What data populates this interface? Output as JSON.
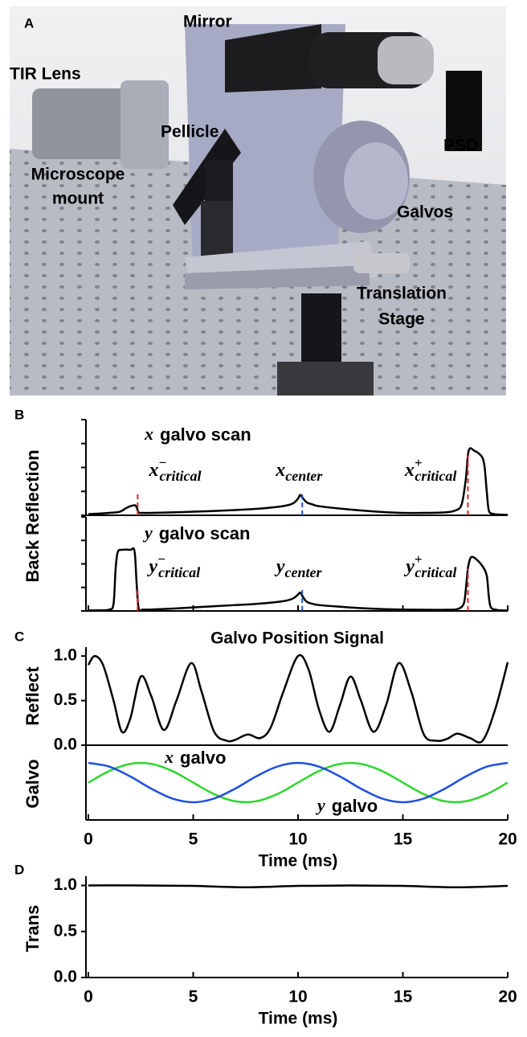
{
  "panel_a": {
    "letter": "A",
    "labels": {
      "mirror": "Mirror",
      "tir_lens": "TIR Lens",
      "pellicle": "Pellicle",
      "psd": "PSD",
      "microscope_mount": [
        "Microscope",
        "mount"
      ],
      "galvos": "Galvos",
      "translation_stage": [
        "Translation",
        "Stage"
      ]
    }
  },
  "chart_data": [
    {
      "type": "line",
      "panel": "B",
      "ylabel": "Back Reflection",
      "annotation": {
        "var": "x",
        "text": "galvo scan"
      },
      "xlim": [
        0,
        20
      ],
      "ylim": [
        0,
        4
      ],
      "yticks": [
        0,
        1,
        2,
        3,
        4
      ],
      "tick_labels": false,
      "x": [
        0,
        0.5,
        1.0,
        1.5,
        1.8,
        2.0,
        2.2,
        2.3,
        2.4,
        2.6,
        3,
        4,
        5,
        6,
        7,
        8,
        9,
        9.5,
        9.8,
        10.0,
        10.1,
        10.2,
        10.4,
        10.7,
        11,
        12,
        13,
        14,
        15,
        16,
        17,
        17.5,
        17.8,
        18.0,
        18.1,
        18.2,
        18.4,
        18.6,
        18.8,
        18.9,
        19.0,
        19.1,
        19.3,
        19.6,
        20
      ],
      "series": [
        {
          "color": "#000000",
          "values": [
            0.05,
            0.07,
            0.1,
            0.15,
            0.3,
            0.38,
            0.42,
            0.35,
            0.12,
            0.1,
            0.1,
            0.12,
            0.15,
            0.18,
            0.22,
            0.27,
            0.35,
            0.42,
            0.52,
            0.7,
            0.85,
            0.75,
            0.55,
            0.45,
            0.38,
            0.28,
            0.2,
            0.14,
            0.1,
            0.1,
            0.12,
            0.2,
            0.45,
            1.5,
            2.5,
            2.8,
            2.7,
            2.6,
            2.4,
            2.0,
            1.0,
            0.2,
            0.06,
            0.03,
            0.02
          ]
        }
      ],
      "markers": [
        {
          "x": 2.35,
          "color": "#e8202a",
          "label": {
            "base": "x",
            "sup": "−",
            "sub": "critical"
          }
        },
        {
          "x": 10.2,
          "color": "#1f4fe0",
          "label": {
            "base": "x",
            "sub": "center"
          }
        },
        {
          "x": 18.1,
          "color": "#e8202a",
          "label": {
            "base": "x",
            "sup": "+",
            "sub": "critical"
          }
        }
      ]
    },
    {
      "type": "line",
      "annotation": {
        "var": "y",
        "text": "galvo scan"
      },
      "xlim": [
        0,
        20
      ],
      "ylim": [
        0,
        4
      ],
      "yticks": [
        0,
        1,
        2,
        3,
        4
      ],
      "xticks": [
        0,
        5,
        10,
        15,
        20
      ],
      "tick_labels": false,
      "x": [
        0,
        0.5,
        1.0,
        1.2,
        1.3,
        1.4,
        1.6,
        2.0,
        2.2,
        2.3,
        2.4,
        2.6,
        3,
        4,
        5,
        6,
        7,
        8,
        9,
        9.5,
        9.8,
        10.0,
        10.1,
        10.2,
        10.4,
        10.7,
        11,
        12,
        13,
        14,
        15,
        16,
        17,
        17.6,
        17.9,
        18.0,
        18.1,
        18.2,
        18.3,
        18.5,
        18.8,
        19.0,
        19.1,
        19.2,
        19.5,
        20
      ],
      "series": [
        {
          "color": "#000000",
          "values": [
            0.02,
            0.03,
            0.06,
            0.3,
            1.8,
            2.5,
            2.6,
            2.6,
            2.55,
            1.2,
            0.1,
            0.06,
            0.06,
            0.1,
            0.15,
            0.2,
            0.25,
            0.3,
            0.38,
            0.45,
            0.55,
            0.7,
            0.78,
            0.65,
            0.4,
            0.3,
            0.25,
            0.18,
            0.12,
            0.08,
            0.06,
            0.05,
            0.05,
            0.08,
            0.3,
            0.9,
            1.8,
            2.2,
            2.3,
            2.2,
            1.9,
            1.5,
            0.6,
            0.15,
            0.04,
            0.02
          ]
        }
      ],
      "markers": [
        {
          "x": 2.35,
          "color": "#e8202a",
          "label": {
            "base": "y",
            "sup": "−",
            "sub": "critical"
          }
        },
        {
          "x": 10.2,
          "color": "#1f4fe0",
          "label": {
            "base": "y",
            "sub": "center"
          }
        },
        {
          "x": 18.1,
          "color": "#e8202a",
          "label": {
            "base": "y",
            "sup": "+",
            "sub": "critical"
          }
        }
      ]
    },
    {
      "type": "line",
      "panel": "C",
      "title": "Galvo Position Signal",
      "ylabel": "Reflect",
      "xlim": [
        0,
        20
      ],
      "ylim": [
        0,
        1.1
      ],
      "yticks": [
        {
          "value": 0,
          "label": "0.0"
        },
        {
          "value": 0.5,
          "label": "0.5"
        },
        {
          "value": 1,
          "label": "1.0"
        }
      ],
      "x": [
        0,
        0.3,
        0.7,
        1.2,
        1.6,
        2.0,
        2.5,
        3.0,
        3.6,
        4.2,
        4.9,
        5.4,
        6.0,
        6.6,
        7.0,
        7.6,
        8.2,
        8.7,
        9.3,
        10.0,
        10.5,
        11.0,
        11.5,
        12.0,
        12.5,
        13.0,
        13.6,
        14.2,
        14.8,
        15.4,
        16.0,
        16.6,
        17.1,
        17.6,
        18.2,
        18.8,
        19.4,
        20
      ],
      "series": [
        {
          "color": "#000000",
          "values": [
            0.9,
            1.0,
            0.9,
            0.5,
            0.15,
            0.3,
            0.77,
            0.55,
            0.17,
            0.5,
            0.92,
            0.6,
            0.15,
            0.05,
            0.06,
            0.12,
            0.08,
            0.2,
            0.6,
            1.0,
            0.85,
            0.4,
            0.15,
            0.45,
            0.77,
            0.5,
            0.15,
            0.45,
            0.92,
            0.6,
            0.12,
            0.05,
            0.07,
            0.13,
            0.08,
            0.05,
            0.4,
            0.93
          ]
        }
      ]
    },
    {
      "type": "line",
      "ylabel": "Galvo",
      "xlabel": "Time (ms)",
      "xlim": [
        0,
        20
      ],
      "ylim": [
        -1.9,
        1.9
      ],
      "xticks": [
        0,
        5,
        10,
        15,
        20
      ],
      "x": [
        0,
        1,
        2,
        3,
        4,
        5,
        6,
        7,
        8,
        9,
        10,
        11,
        12,
        13,
        14,
        15,
        16,
        17,
        18,
        19,
        20
      ],
      "series": [
        {
          "label": {
            "var": "x",
            "text": "galvo"
          },
          "color": "#2fd62f",
          "values": [
            0,
            0.59,
            0.95,
            0.95,
            0.59,
            0,
            -0.59,
            -0.95,
            -0.95,
            -0.59,
            0,
            0.59,
            0.95,
            0.95,
            0.59,
            0,
            -0.59,
            -0.95,
            -0.95,
            -0.59,
            0
          ]
        },
        {
          "label": {
            "var": "y",
            "text": "galvo"
          },
          "color": "#1f4fe0",
          "values": [
            1,
            0.81,
            0.31,
            -0.31,
            -0.81,
            -1,
            -0.81,
            -0.31,
            0.31,
            0.81,
            1,
            0.81,
            0.31,
            -0.31,
            -0.81,
            -1,
            -0.81,
            -0.31,
            0.31,
            0.81,
            1
          ]
        }
      ]
    },
    {
      "type": "line",
      "panel": "D",
      "ylabel": "Trans",
      "xlabel": "Time (ms)",
      "xlim": [
        0,
        20
      ],
      "ylim": [
        0,
        1.1
      ],
      "yticks": [
        {
          "value": 0,
          "label": "0.0"
        },
        {
          "value": 0.5,
          "label": "0.5"
        },
        {
          "value": 1,
          "label": "1.0"
        }
      ],
      "xticks": [
        0,
        5,
        10,
        15,
        20
      ],
      "x": [
        0,
        2.5,
        5,
        7.5,
        10,
        12.5,
        15,
        17.5,
        20
      ],
      "series": [
        {
          "color": "#000000",
          "values": [
            1.0,
            1.0,
            0.995,
            0.98,
            0.995,
            1.0,
            0.995,
            0.98,
            0.995
          ]
        }
      ]
    }
  ]
}
